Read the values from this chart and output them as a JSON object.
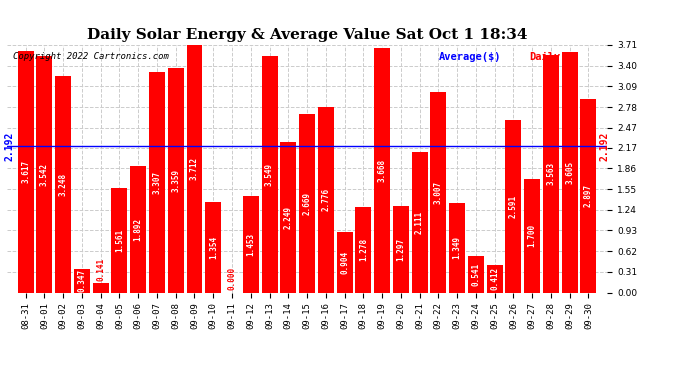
{
  "title": "Daily Solar Energy & Average Value Sat Oct 1 18:34",
  "copyright": "Copyright 2022 Cartronics.com",
  "legend_avg": "Average($)",
  "legend_daily": "Daily($)",
  "average_value": 2.192,
  "categories": [
    "08-31",
    "09-01",
    "09-02",
    "09-03",
    "09-04",
    "09-05",
    "09-06",
    "09-07",
    "09-08",
    "09-09",
    "09-10",
    "09-11",
    "09-12",
    "09-13",
    "09-14",
    "09-15",
    "09-16",
    "09-17",
    "09-18",
    "09-19",
    "09-20",
    "09-21",
    "09-22",
    "09-23",
    "09-24",
    "09-25",
    "09-26",
    "09-27",
    "09-28",
    "09-29",
    "09-30"
  ],
  "values": [
    3.617,
    3.542,
    3.248,
    0.347,
    0.141,
    1.561,
    1.892,
    3.307,
    3.359,
    3.712,
    1.354,
    0.0,
    1.453,
    3.549,
    2.249,
    2.669,
    2.776,
    0.904,
    1.278,
    3.668,
    1.297,
    2.111,
    3.007,
    1.349,
    0.541,
    0.412,
    2.591,
    1.7,
    3.563,
    3.605,
    2.897
  ],
  "bar_color": "#ff0000",
  "avg_line_color": "#0000ff",
  "avg_label_color": "#0000ff",
  "daily_label_color": "#ff0000",
  "background_color": "#ffffff",
  "grid_color": "#cccccc",
  "yticks": [
    0.0,
    0.31,
    0.62,
    0.93,
    1.24,
    1.55,
    1.86,
    2.17,
    2.47,
    2.78,
    3.09,
    3.4,
    3.71
  ],
  "ylim": [
    0,
    3.71
  ],
  "avg_annotation": "2.192",
  "title_fontsize": 11,
  "copyright_fontsize": 6.5,
  "bar_label_fontsize": 5.5,
  "tick_fontsize": 6.5,
  "legend_fontsize": 7.5,
  "bar_width": 0.85
}
